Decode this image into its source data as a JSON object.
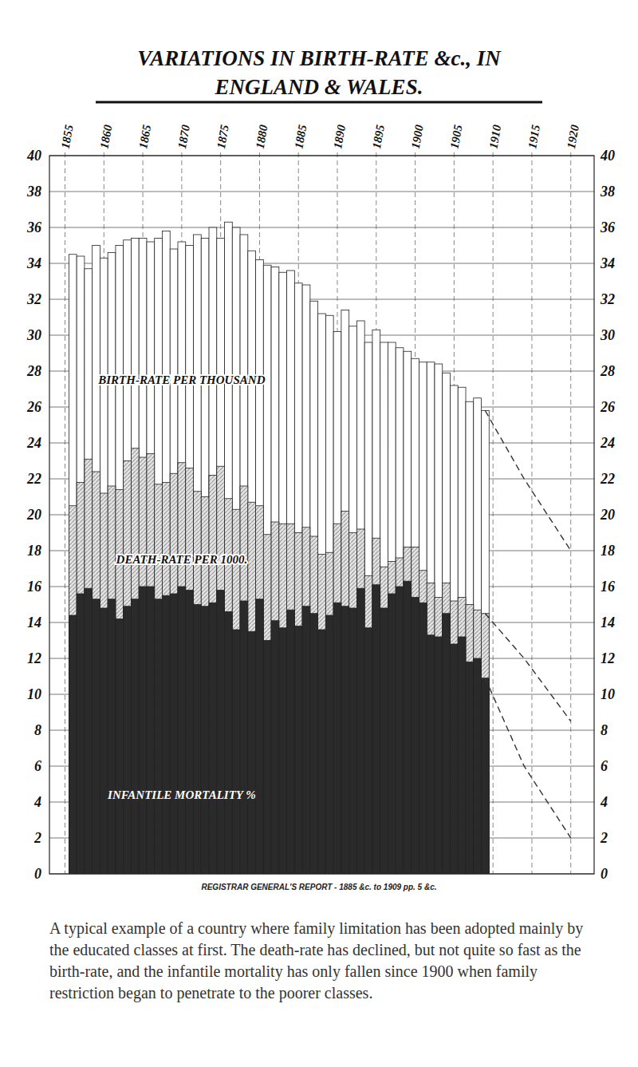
{
  "chart_data": {
    "type": "bar",
    "title": "VARIATIONS IN BIRTH-RATE &c., IN",
    "subtitle": "ENGLAND & WALES.",
    "source": "REGISTRAR GENERAL'S REPORT - 1885 &c. to 1909 pp. 5 &c.",
    "caption": "A typical example of a country where family limitation has been adopted mainly by the educated classes at first. The death-rate has declined, but not quite so fast as the birth-rate, and the infantile mortality has only fallen since 1900 when family restriction began to penetrate to the poorer classes.",
    "x": [
      1856,
      1857,
      1858,
      1859,
      1860,
      1861,
      1862,
      1863,
      1864,
      1865,
      1866,
      1867,
      1868,
      1869,
      1870,
      1871,
      1872,
      1873,
      1874,
      1875,
      1876,
      1877,
      1878,
      1879,
      1880,
      1881,
      1882,
      1883,
      1884,
      1885,
      1886,
      1887,
      1888,
      1889,
      1890,
      1891,
      1892,
      1893,
      1894,
      1895,
      1896,
      1897,
      1898,
      1899,
      1900,
      1901,
      1902,
      1903,
      1904,
      1905,
      1906,
      1907,
      1908,
      1909
    ],
    "series": [
      {
        "name": "BIRTH-RATE PER THOUSAND",
        "type": "bar",
        "color": "#ffffff",
        "values": [
          34.5,
          34.4,
          33.7,
          35.0,
          34.3,
          34.6,
          35.0,
          35.3,
          35.4,
          35.4,
          35.2,
          35.4,
          35.8,
          34.8,
          35.2,
          35.0,
          35.6,
          35.4,
          36.0,
          35.4,
          36.3,
          36.0,
          35.6,
          34.7,
          34.2,
          33.9,
          33.8,
          33.5,
          33.6,
          32.9,
          32.8,
          31.9,
          31.2,
          31.1,
          30.2,
          31.4,
          30.5,
          30.8,
          29.6,
          30.3,
          29.6,
          29.6,
          29.3,
          29.1,
          28.7,
          28.5,
          28.5,
          28.4,
          27.9,
          27.2,
          27.1,
          26.3,
          26.5,
          25.8
        ]
      },
      {
        "name": "DEATH-RATE PER 1000.",
        "type": "bar",
        "color": "#9a9a9a",
        "values": [
          20.5,
          21.8,
          23.1,
          22.4,
          21.2,
          21.6,
          21.4,
          23.0,
          23.7,
          23.2,
          23.4,
          21.7,
          21.8,
          22.3,
          22.9,
          22.6,
          21.3,
          21.0,
          22.2,
          22.7,
          20.9,
          20.3,
          21.6,
          20.7,
          20.5,
          18.9,
          19.6,
          19.5,
          19.5,
          19.0,
          19.3,
          18.8,
          17.8,
          17.9,
          19.5,
          20.2,
          19.0,
          19.2,
          16.6,
          18.7,
          17.1,
          17.4,
          17.6,
          18.2,
          18.2,
          16.9,
          16.2,
          15.4,
          16.2,
          15.2,
          15.4,
          15.0,
          14.7,
          14.5
        ]
      },
      {
        "name": "INFANTILE MORTALITY %",
        "type": "bar",
        "color": "#2a2a2a",
        "values": [
          14.4,
          15.6,
          15.9,
          15.3,
          14.8,
          15.3,
          14.2,
          14.9,
          15.3,
          16.0,
          16.0,
          15.3,
          15.5,
          15.6,
          16.0,
          15.8,
          15.0,
          14.9,
          15.1,
          15.8,
          14.6,
          13.6,
          15.2,
          13.5,
          15.3,
          13.0,
          14.1,
          13.7,
          14.7,
          13.8,
          14.9,
          14.5,
          13.6,
          14.4,
          15.1,
          14.9,
          14.8,
          15.9,
          13.7,
          16.1,
          14.8,
          15.6,
          16.0,
          16.3,
          15.4,
          15.1,
          13.3,
          13.2,
          14.5,
          12.8,
          13.2,
          11.8,
          12.0,
          10.9
        ]
      },
      {
        "type": "line",
        "line_style": "dashed",
        "color": "#333333",
        "x": [
          1909,
          1914,
          1920
        ],
        "values": [
          25.8,
          22,
          18
        ]
      },
      {
        "type": "line",
        "line_style": "dashed",
        "color": "#333333",
        "x": [
          1909,
          1914,
          1920
        ],
        "values": [
          14.5,
          12,
          8.5
        ]
      },
      {
        "type": "line",
        "line_style": "dashed",
        "color": "#333333",
        "x": [
          1909,
          1914,
          1920
        ],
        "values": [
          10.9,
          6,
          2
        ]
      }
    ],
    "xlim": [
      1853,
      1923
    ],
    "xticks": [
      1855,
      1860,
      1865,
      1870,
      1875,
      1880,
      1885,
      1890,
      1895,
      1900,
      1905,
      1910,
      1915,
      1920
    ],
    "ylim": [
      0,
      40
    ],
    "yticks": [
      0,
      2,
      4,
      6,
      8,
      10,
      12,
      14,
      16,
      18,
      20,
      22,
      24,
      26,
      28,
      30,
      32,
      34,
      36,
      38,
      40
    ],
    "grid": true
  }
}
